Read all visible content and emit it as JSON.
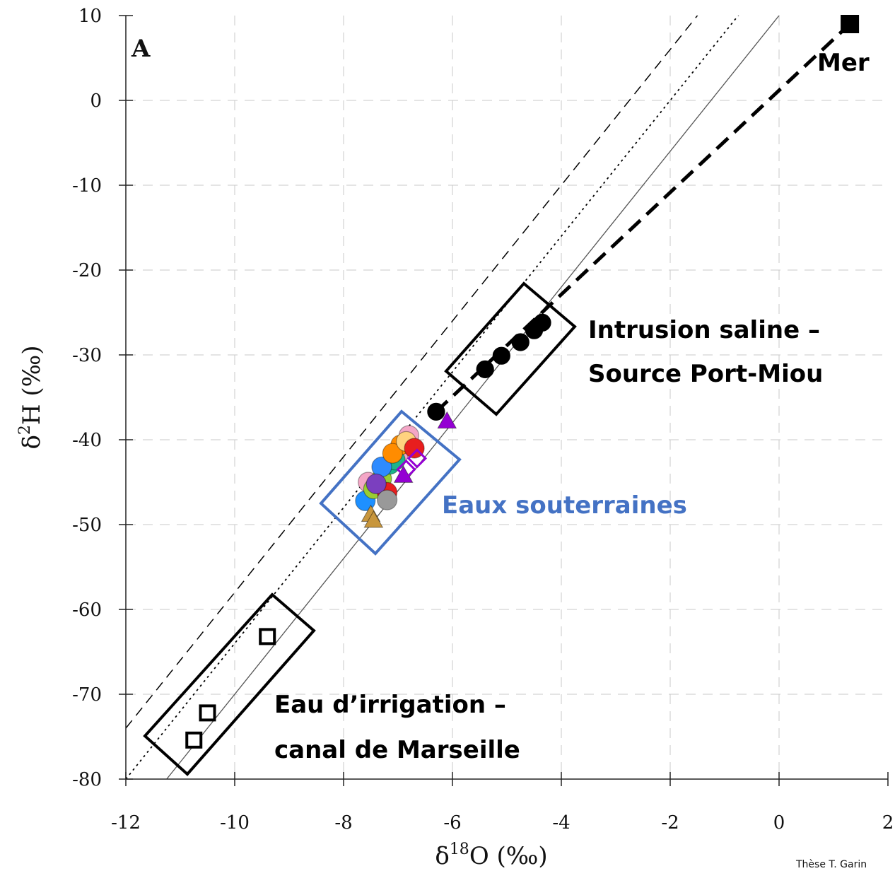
{
  "chart_data": {
    "type": "scatter",
    "title": "",
    "panel_label": "A",
    "xlabel": "δ18O (‰)",
    "ylabel": "δ2H (‰)",
    "xlim": [
      -12,
      2
    ],
    "ylim": [
      -80,
      10
    ],
    "xticks": [
      -12,
      -10,
      -8,
      -6,
      -4,
      -2,
      0,
      2
    ],
    "yticks": [
      10,
      0,
      -10,
      -20,
      -30,
      -40,
      -50,
      -60,
      -70,
      -80
    ],
    "grid": true,
    "reference_lines": [
      {
        "slope": 8,
        "intercept": 22,
        "style": "dashed",
        "color": "#000000"
      },
      {
        "slope": 8,
        "intercept": 16,
        "style": "dotted",
        "color": "#000000"
      },
      {
        "slope": 8,
        "intercept": 10,
        "style": "solid",
        "color": "#555555"
      },
      {
        "x": [
          -6.3,
          1.3
        ],
        "y": [
          -36.7,
          9.0
        ],
        "style": "bold-dashed",
        "color": "#000000"
      }
    ],
    "series": [
      {
        "marker": "square-filled",
        "color": "#000000",
        "points": [
          [
            1.3,
            9.0
          ]
        ]
      },
      {
        "marker": "circle-filled",
        "color": "#000000",
        "points": [
          [
            -6.3,
            -36.7
          ],
          [
            -5.4,
            -31.7
          ],
          [
            -5.1,
            -30.1
          ],
          [
            -4.75,
            -28.5
          ],
          [
            -4.5,
            -27.1
          ],
          [
            -4.35,
            -26.2
          ]
        ]
      },
      {
        "marker": "square-open",
        "color": "#000000",
        "points": [
          [
            -9.4,
            -63.2
          ],
          [
            -10.5,
            -72.2
          ],
          [
            -10.75,
            -75.4
          ]
        ]
      },
      {
        "marker": "circle-filled",
        "color": "#1E90FF",
        "points": [
          [
            -7.6,
            -47.2
          ]
        ]
      },
      {
        "marker": "circle-filled",
        "color": "#F4A6C6",
        "points": [
          [
            -7.55,
            -45.0
          ],
          [
            -7.0,
            -41.8
          ],
          [
            -6.8,
            -39.5
          ]
        ]
      },
      {
        "marker": "circle-filled",
        "color": "#9ACD32",
        "points": [
          [
            -7.3,
            -44.6
          ],
          [
            -7.45,
            -45.8
          ]
        ]
      },
      {
        "marker": "circle-filled",
        "color": "#1DB48C",
        "points": [
          [
            -7.15,
            -42.9
          ],
          [
            -7.05,
            -42.4
          ]
        ]
      },
      {
        "marker": "circle-filled",
        "color": "#2E8BFF",
        "points": [
          [
            -7.3,
            -43.2
          ]
        ]
      },
      {
        "marker": "circle-filled",
        "color": "#FF8C00",
        "points": [
          [
            -6.95,
            -40.6
          ],
          [
            -7.1,
            -41.6
          ]
        ]
      },
      {
        "marker": "circle-filled",
        "color": "#FFD27F",
        "points": [
          [
            -6.85,
            -40.2
          ]
        ]
      },
      {
        "marker": "circle-filled",
        "color": "#E81E1E",
        "points": [
          [
            -6.7,
            -41.0
          ],
          [
            -7.2,
            -46.2
          ]
        ]
      },
      {
        "marker": "circle-filled",
        "color": "#7B3FBF",
        "points": [
          [
            -7.4,
            -45.2
          ]
        ]
      },
      {
        "marker": "circle-filled",
        "color": "#999999",
        "points": [
          [
            -7.2,
            -47.1
          ]
        ]
      },
      {
        "marker": "triangle-filled",
        "color": "#C8963C",
        "points": [
          [
            -7.5,
            -48.8
          ],
          [
            -7.45,
            -49.5
          ]
        ]
      },
      {
        "marker": "triangle-filled",
        "color": "#9400D3",
        "points": [
          [
            -6.1,
            -37.8
          ],
          [
            -6.9,
            -44.2
          ]
        ]
      },
      {
        "marker": "diamond-open",
        "color": "#9400D3",
        "points": [
          [
            -6.65,
            -42.2
          ],
          [
            -6.85,
            -43.5
          ]
        ]
      }
    ],
    "annotations": [
      {
        "text": "Mer"
      },
      {
        "text": "Intrusion saline –"
      },
      {
        "text": "Source Port-Miou"
      },
      {
        "text": "Eaux souterraines",
        "color": "#4472C4"
      },
      {
        "text": "Eau d’irrigation –"
      },
      {
        "text": "canal de Marseille"
      }
    ]
  },
  "credit": "Thèse T. Garin"
}
